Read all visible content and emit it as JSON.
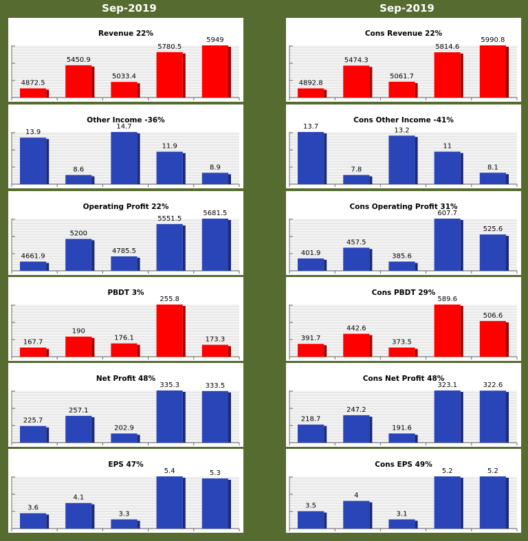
{
  "columns": [
    {
      "header": "Sep-2019"
    },
    {
      "header": "Sep-2019"
    }
  ],
  "colors": {
    "red": "#ff0000",
    "blue": "#2a45b8",
    "background": "#556b2f"
  },
  "chart_data": [
    {
      "type": "bar",
      "title": "Revenue 22%",
      "color": "red",
      "values": [
        4872.5,
        5450.9,
        5033.4,
        5780.5,
        5949
      ],
      "labels": [
        "4872.5",
        "5450.9",
        "5033.4",
        "5780.5",
        "5949"
      ]
    },
    {
      "type": "bar",
      "title": "Cons Revenue 22%",
      "color": "red",
      "values": [
        4892.8,
        5474.3,
        5061.7,
        5814.6,
        5990.8
      ],
      "labels": [
        "4892.8",
        "5474.3",
        "5061.7",
        "5814.6",
        "5990.8"
      ]
    },
    {
      "type": "bar",
      "title": "Other Income -36%",
      "color": "blue",
      "values": [
        13.9,
        8.6,
        14.7,
        11.9,
        8.9
      ],
      "labels": [
        "13.9",
        "8.6",
        "14.7",
        "11.9",
        "8.9"
      ]
    },
    {
      "type": "bar",
      "title": "Cons Other Income -41%",
      "color": "blue",
      "values": [
        13.7,
        7.8,
        13.2,
        11,
        8.1
      ],
      "labels": [
        "13.7",
        "7.8",
        "13.2",
        "11",
        "8.1"
      ]
    },
    {
      "type": "bar",
      "title": "Operating Profit 22%",
      "color": "blue",
      "values": [
        4661.9,
        5200,
        4785.5,
        5551.5,
        5681.5
      ],
      "labels": [
        "4661.9",
        "5200",
        "4785.5",
        "5551.5",
        "5681.5"
      ]
    },
    {
      "type": "bar",
      "title": "Cons Operating Profit 31%",
      "color": "blue",
      "values": [
        401.9,
        457.5,
        385.6,
        607.7,
        525.6
      ],
      "labels": [
        "401.9",
        "457.5",
        "385.6",
        "607.7",
        "525.6"
      ]
    },
    {
      "type": "bar",
      "title": "PBDT 3%",
      "color": "red",
      "values": [
        167.7,
        190,
        176.1,
        255.8,
        173.3
      ],
      "labels": [
        "167.7",
        "190",
        "176.1",
        "255.8",
        "173.3"
      ]
    },
    {
      "type": "bar",
      "title": "Cons PBDT 29%",
      "color": "red",
      "values": [
        391.7,
        442.6,
        373.5,
        589.6,
        506.6
      ],
      "labels": [
        "391.7",
        "442.6",
        "373.5",
        "589.6",
        "506.6"
      ]
    },
    {
      "type": "bar",
      "title": "Net Profit 48%",
      "color": "blue",
      "values": [
        225.7,
        257.1,
        202.9,
        335.3,
        333.5
      ],
      "labels": [
        "225.7",
        "257.1",
        "202.9",
        "335.3",
        "333.5"
      ]
    },
    {
      "type": "bar",
      "title": "Cons Net Profit 48%",
      "color": "blue",
      "values": [
        218.7,
        247.2,
        191.6,
        323.1,
        322.6
      ],
      "labels": [
        "218.7",
        "247.2",
        "191.6",
        "323.1",
        "322.6"
      ]
    },
    {
      "type": "bar",
      "title": "EPS 47%",
      "color": "blue",
      "values": [
        3.6,
        4.1,
        3.3,
        5.4,
        5.3
      ],
      "labels": [
        "3.6",
        "4.1",
        "3.3",
        "5.4",
        "5.3"
      ]
    },
    {
      "type": "bar",
      "title": "Cons EPS 49%",
      "color": "blue",
      "values": [
        3.5,
        4,
        3.1,
        5.2,
        5.2
      ],
      "labels": [
        "3.5",
        "4",
        "3.1",
        "5.2",
        "5.2"
      ]
    }
  ]
}
